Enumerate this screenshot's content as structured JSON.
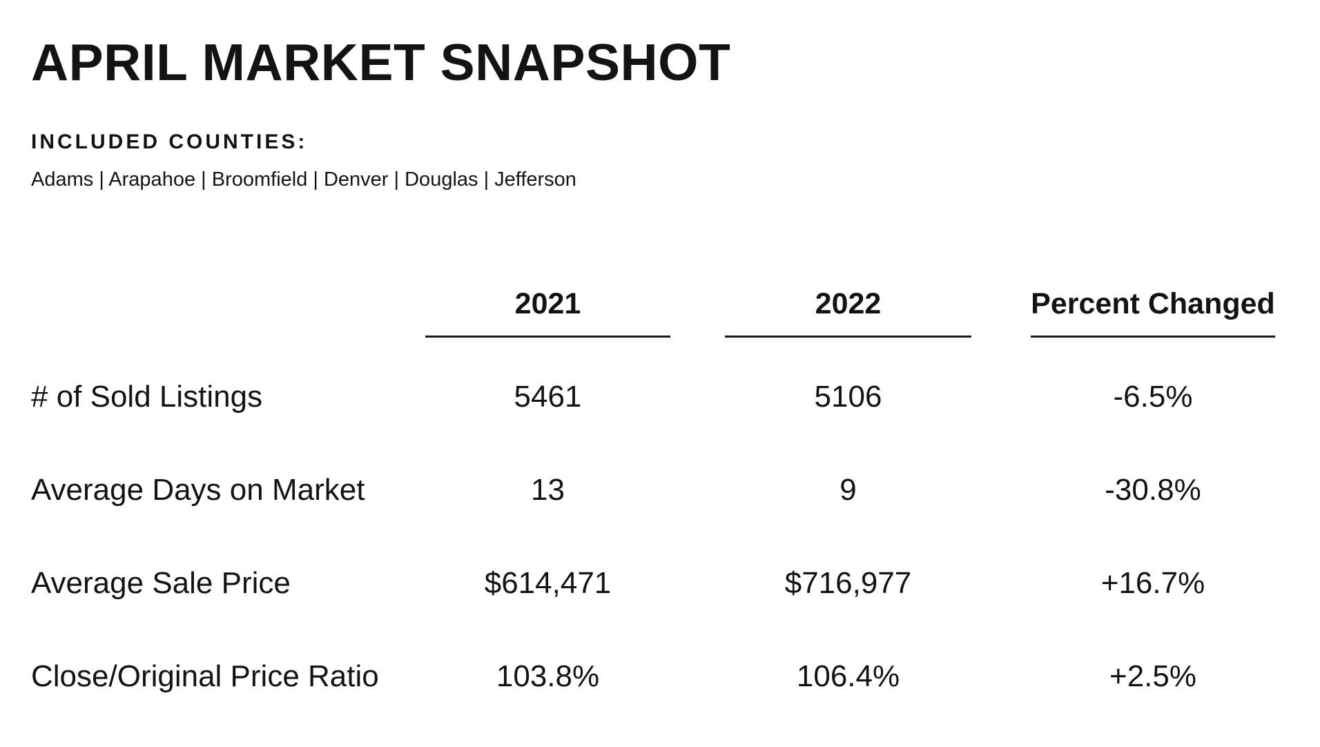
{
  "header": {
    "title": "APRIL MARKET SNAPSHOT",
    "included_counties_label": "INCLUDED COUNTIES:",
    "counties": "Adams | Arapahoe | Broomfield | Denver | Douglas | Jefferson"
  },
  "colors": {
    "background": "#ffffff",
    "text": "#131313",
    "rule": "#1a1a1a"
  },
  "table": {
    "column_headers": [
      "2021",
      "2022",
      "Percent Changed"
    ],
    "rows": [
      {
        "label": "# of Sold Listings",
        "y2021": "5461",
        "y2022": "5106",
        "percent_changed": "-6.5%"
      },
      {
        "label": "Average Days on Market",
        "y2021": "13",
        "y2022": "9",
        "percent_changed": "-30.8%"
      },
      {
        "label": "Average Sale Price",
        "y2021": "$614,471",
        "y2022": "$716,977",
        "percent_changed": "+16.7%"
      },
      {
        "label": "Close/Original Price Ratio",
        "y2021": "103.8%",
        "y2022": "106.4%",
        "percent_changed": "+2.5%"
      }
    ]
  },
  "chart_data": {
    "type": "table",
    "title": "April Market Snapshot",
    "categories": [
      "# of Sold Listings",
      "Average Days on Market",
      "Average Sale Price",
      "Close/Original Price Ratio"
    ],
    "series": [
      {
        "name": "2021",
        "values": [
          5461,
          13,
          614471,
          103.8
        ]
      },
      {
        "name": "2022",
        "values": [
          5106,
          9,
          716977,
          106.4
        ]
      },
      {
        "name": "Percent Changed",
        "values": [
          -6.5,
          -30.8,
          16.7,
          2.5
        ]
      }
    ]
  }
}
